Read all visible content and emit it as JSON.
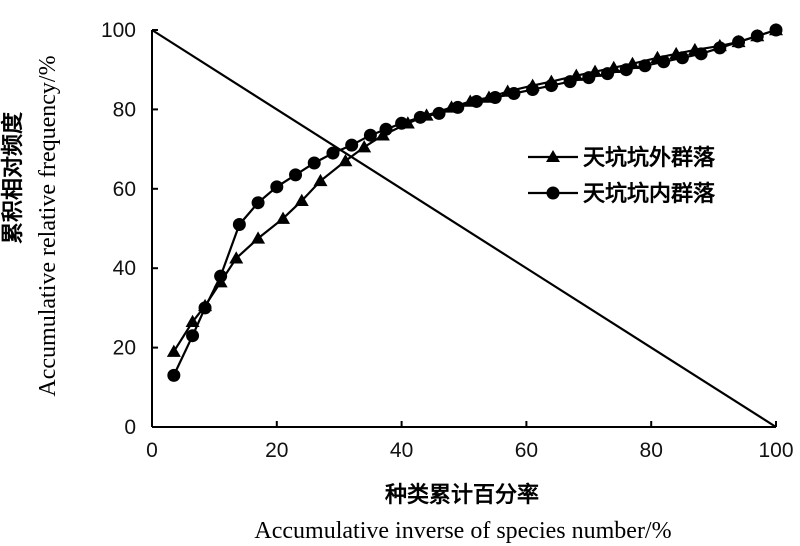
{
  "chart_data": {
    "type": "line",
    "xlabel": [
      "种类累计百分率",
      "Accumulative inverse of species number/%"
    ],
    "ylabel": [
      "累积相对频度",
      "Accumulative relative frequency/%"
    ],
    "xlim": [
      0,
      100
    ],
    "ylim": [
      0,
      100
    ],
    "x_ticks": [
      "0",
      "20",
      "40",
      "60",
      "80",
      "100"
    ],
    "y_ticks": [
      "0",
      "20",
      "40",
      "60",
      "80",
      "100"
    ],
    "legend_position": "right",
    "series": [
      {
        "name": "天坑坑外群落",
        "marker": "triangle",
        "x": [
          3.5,
          6.5,
          8.5,
          11,
          13.5,
          17,
          21,
          24,
          27,
          31,
          34,
          37,
          41,
          44,
          48,
          51,
          54,
          57,
          61,
          64,
          68,
          71,
          74,
          77,
          81,
          84,
          87,
          91,
          94,
          97,
          100
        ],
        "y": [
          19,
          26.5,
          30.5,
          36.5,
          42.5,
          47.5,
          52.5,
          57,
          62,
          67,
          70.5,
          73.5,
          76.5,
          78.5,
          80.5,
          82,
          83,
          84.5,
          86,
          87,
          88.5,
          89.5,
          90.5,
          91.5,
          93,
          94,
          95,
          96,
          97,
          98.5,
          100
        ]
      },
      {
        "name": "天坑坑内群落",
        "marker": "circle",
        "x": [
          3.5,
          6.5,
          8.5,
          11,
          14,
          17,
          20,
          23,
          26,
          29,
          32,
          35,
          37.5,
          40,
          43,
          46,
          49,
          52,
          55,
          58,
          61,
          64,
          67,
          70,
          73,
          76,
          79,
          82,
          85,
          88,
          91,
          94,
          97,
          100
        ],
        "y": [
          13,
          23,
          30,
          38,
          51,
          56.5,
          60.5,
          63.5,
          66.5,
          69,
          71,
          73.5,
          75,
          76.5,
          78,
          79,
          80.5,
          82,
          83,
          84,
          85,
          86,
          87,
          88,
          89,
          90,
          91,
          92,
          93,
          94,
          95.5,
          97,
          98.5,
          100
        ]
      },
      {
        "name": "",
        "marker": "none",
        "x": [
          0,
          100
        ],
        "y": [
          100,
          0
        ]
      }
    ],
    "grid": false
  }
}
